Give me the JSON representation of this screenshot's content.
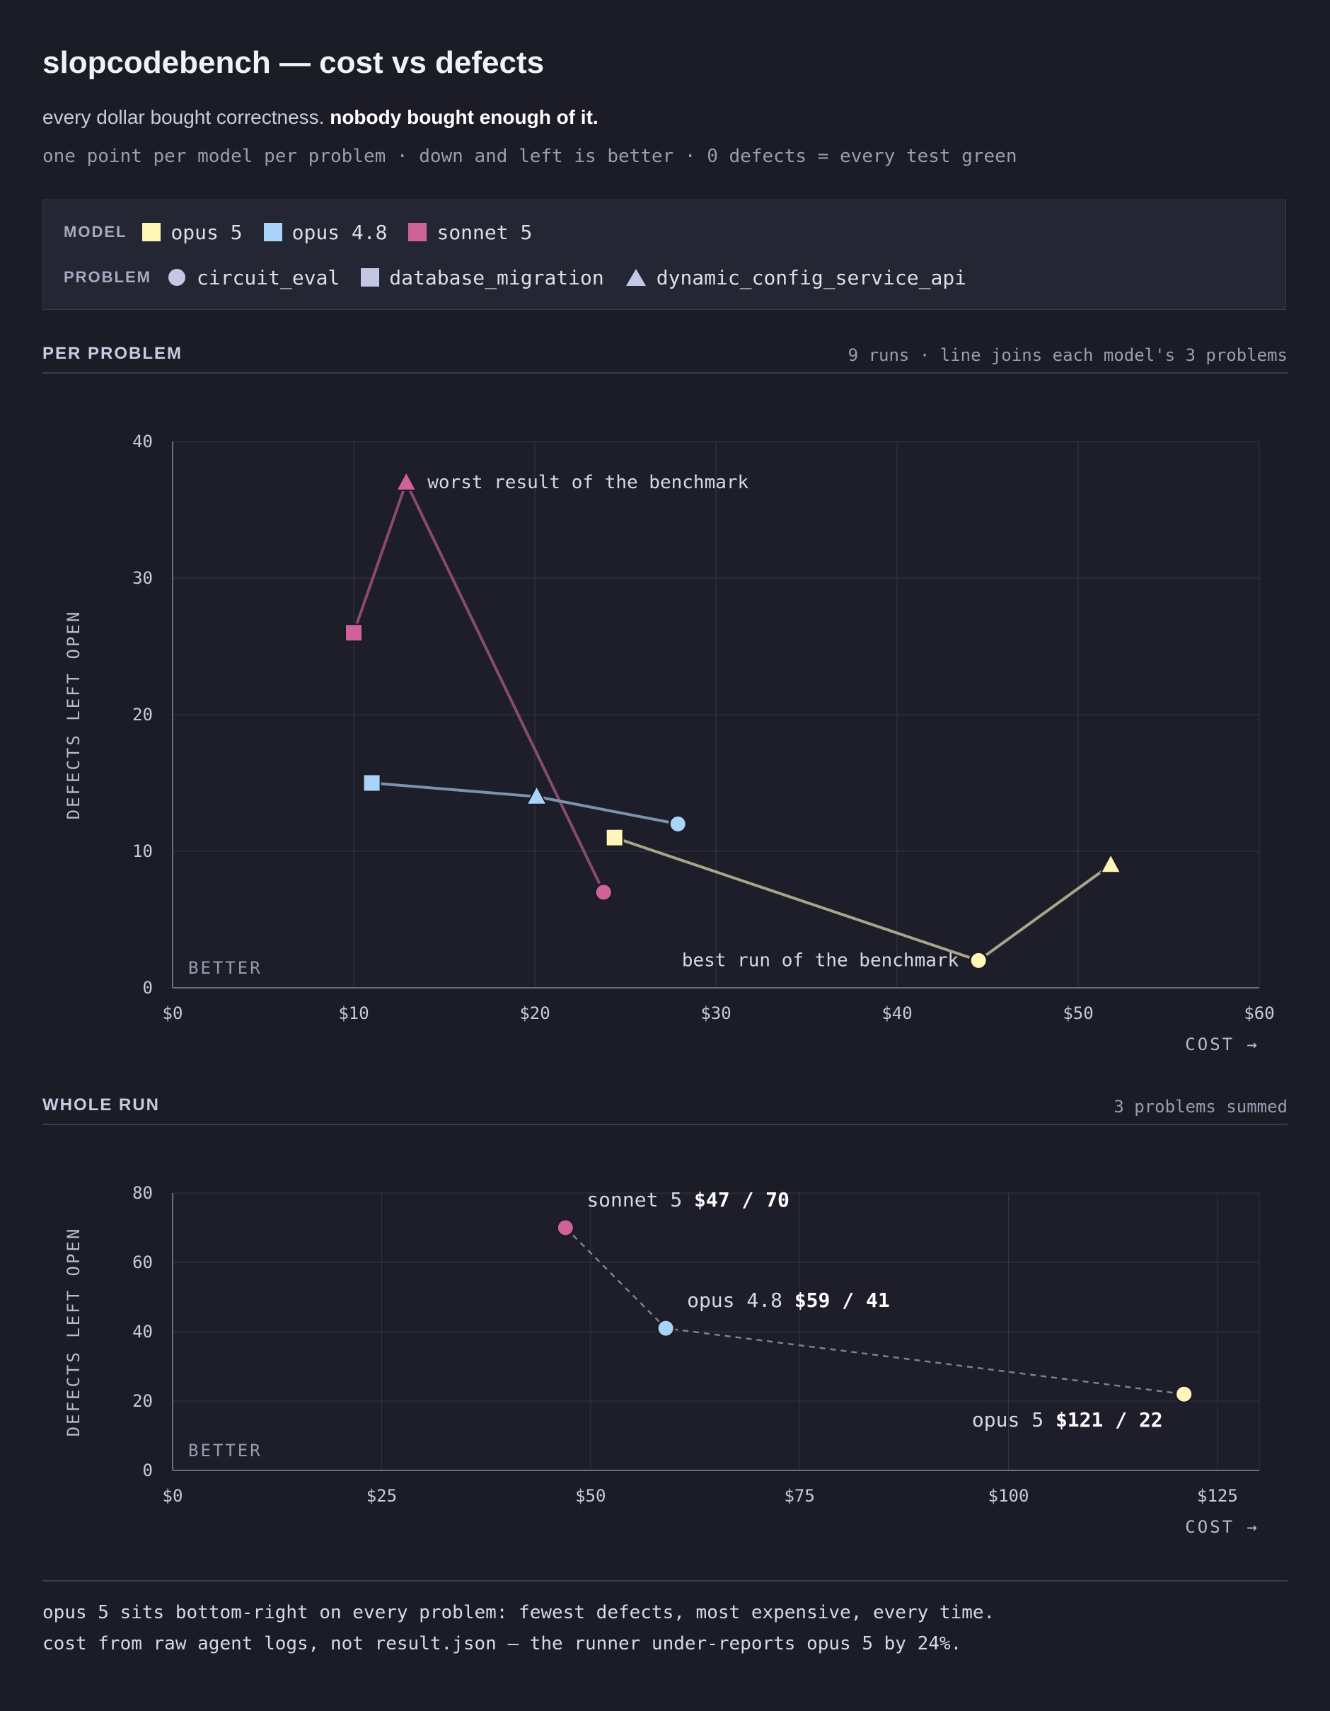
{
  "title": "slopcodebench — cost vs defects",
  "subtitle": {
    "plain": "every dollar bought correctness.",
    "bold": "nobody bought enough of it."
  },
  "note": "one point per model per problem · down and left is better · 0 defects = every test green",
  "legend": {
    "model_key": "MODEL",
    "problem_key": "PROBLEM",
    "models": [
      {
        "name": "opus 5",
        "color": "#fff6b8"
      },
      {
        "name": "opus 4.8",
        "color": "#a8d4fa"
      },
      {
        "name": "sonnet 5",
        "color": "#d0629a"
      }
    ],
    "problems": [
      {
        "name": "circuit_eval",
        "shape": "circle"
      },
      {
        "name": "database_migration",
        "shape": "square"
      },
      {
        "name": "dynamic_config_service_api",
        "shape": "triangle"
      }
    ],
    "problem_color": "#c5c7e6"
  },
  "sections": {
    "per_problem": {
      "title": "PER PROBLEM",
      "note": "9 runs · line joins each model's 3 problems"
    },
    "whole_run": {
      "title": "WHOLE RUN",
      "note": "3 problems summed"
    }
  },
  "footer": {
    "line1": "opus 5 sits bottom-right on every problem: fewest defects, most expensive, every time.",
    "line2": "cost from raw agent logs, not result.json — the runner under-reports opus 5 by 24%."
  },
  "chart_data": [
    {
      "type": "scatter",
      "title": "PER PROBLEM",
      "xlabel": "COST →",
      "ylabel": "DEFECTS LEFT OPEN",
      "xlim": [
        0,
        60
      ],
      "ylim": [
        0,
        40
      ],
      "x_ticks": [
        0,
        10,
        20,
        30,
        40,
        50,
        60
      ],
      "x_tick_labels": [
        "$0",
        "$10",
        "$20",
        "$30",
        "$40",
        "$50",
        "$60"
      ],
      "y_ticks": [
        0,
        10,
        20,
        30,
        40
      ],
      "y_tick_labels": [
        "0",
        "10",
        "20",
        "30",
        "40"
      ],
      "grid": true,
      "corner_label": "BETTER",
      "series": [
        {
          "name": "sonnet 5",
          "color": "#d0629a",
          "line_color": "#8a4a70",
          "points": [
            {
              "problem": "database_migration",
              "x": 10.0,
              "y": 26
            },
            {
              "problem": "dynamic_config_service_api",
              "x": 12.9,
              "y": 37
            },
            {
              "problem": "circuit_eval",
              "x": 23.8,
              "y": 7
            }
          ]
        },
        {
          "name": "opus 4.8",
          "color": "#a8d4fa",
          "line_color": "#7d93ac",
          "points": [
            {
              "problem": "database_migration",
              "x": 11.0,
              "y": 15
            },
            {
              "problem": "dynamic_config_service_api",
              "x": 20.1,
              "y": 14
            },
            {
              "problem": "circuit_eval",
              "x": 27.9,
              "y": 12
            }
          ]
        },
        {
          "name": "opus 5",
          "color": "#fff6b8",
          "line_color": "#a8a688",
          "points": [
            {
              "problem": "database_migration",
              "x": 24.4,
              "y": 11
            },
            {
              "problem": "circuit_eval",
              "x": 44.5,
              "y": 2
            },
            {
              "problem": "dynamic_config_service_api",
              "x": 51.8,
              "y": 9
            }
          ]
        }
      ],
      "annotations": [
        {
          "text": "worst result of the benchmark",
          "x": 12.9,
          "y": 37,
          "side": "right"
        },
        {
          "text": "best run of the benchmark",
          "x": 44.5,
          "y": 2,
          "side": "left"
        }
      ]
    },
    {
      "type": "scatter",
      "title": "WHOLE RUN",
      "xlabel": "COST →",
      "ylabel": "DEFECTS LEFT OPEN",
      "xlim": [
        0,
        130
      ],
      "ylim": [
        0,
        80
      ],
      "x_ticks": [
        0,
        25,
        50,
        75,
        100,
        125
      ],
      "x_tick_labels": [
        "$0",
        "$25",
        "$50",
        "$75",
        "$100",
        "$125"
      ],
      "y_ticks": [
        0,
        20,
        40,
        60,
        80
      ],
      "y_tick_labels": [
        "0",
        "20",
        "40",
        "60",
        "80"
      ],
      "grid": true,
      "corner_label": "BETTER",
      "connector": "dashed",
      "points": [
        {
          "name": "sonnet 5",
          "x": 47,
          "y": 70,
          "value_label": "$47 / 70",
          "color": "#d0629a",
          "label_pos": "above-right"
        },
        {
          "name": "opus 4.8",
          "x": 59,
          "y": 41,
          "value_label": "$59 / 41",
          "color": "#a8d4fa",
          "label_pos": "above-right"
        },
        {
          "name": "opus 5",
          "x": 121,
          "y": 22,
          "value_label": "$121 / 22",
          "color": "#fff6b8",
          "label_pos": "below-left"
        }
      ]
    }
  ]
}
